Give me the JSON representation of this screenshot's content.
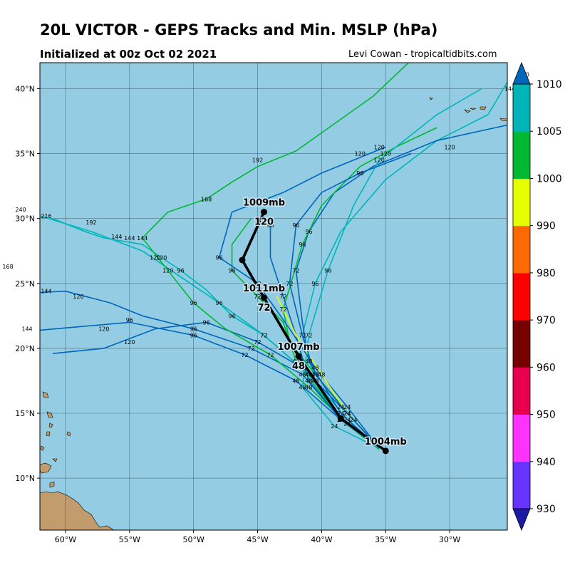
{
  "title": "20L VICTOR - GEPS Tracks and Min. MSLP (hPa)",
  "subtitle": "Initialized at 00z Oct 02 2021",
  "credit": "Levi Cowan - tropicaltidbits.com",
  "colors": {
    "ocean": "#94cde3",
    "land": "#c29c6c",
    "grid": "#000000",
    "mean_track": "#000000"
  },
  "map": {
    "lon_range": [
      -62,
      -25.5
    ],
    "lat_range": [
      6,
      42
    ],
    "lon_ticks": [
      "60°W",
      "55°W",
      "50°W",
      "45°W",
      "40°W",
      "35°W",
      "30°W"
    ],
    "lat_ticks": [
      "10°N",
      "15°N",
      "20°N",
      "25°N",
      "30°N",
      "35°N",
      "40°N"
    ]
  },
  "colorbar": {
    "levels": [
      930,
      940,
      950,
      960,
      970,
      980,
      990,
      1000,
      1005,
      1010
    ],
    "labels": [
      "930",
      "940",
      "950",
      "960",
      "970",
      "980",
      "990",
      "1000",
      "1005",
      "1010"
    ],
    "colors": [
      "#6633ff",
      "#ff33ff",
      "#e8004f",
      "#760000",
      "#ff0000",
      "#ff6a00",
      "#e5ff00",
      "#00b832",
      "#00b5b8"
    ],
    "under_color": "#1a1aa6",
    "over_color": "#0066bb"
  },
  "mean_track": [
    {
      "lon": -35.0,
      "lat": 12.1,
      "hour": "0",
      "label": "1004mb"
    },
    {
      "lon": -38.5,
      "lat": 14.6,
      "hour": "24"
    },
    {
      "lon": -41.8,
      "lat": 19.4,
      "hour": "48",
      "label": "1007mb"
    },
    {
      "lon": -44.5,
      "lat": 23.9,
      "hour": "72",
      "label": "1011mb"
    },
    {
      "lon": -46.2,
      "lat": 26.8,
      "hour": "96"
    },
    {
      "lon": -44.5,
      "lat": 30.5,
      "hour": "120",
      "label": "1009mb"
    }
  ],
  "members": [
    {
      "color": "#00b832",
      "points": [
        [
          -35.5,
          12.2
        ],
        [
          -38.5,
          14.5
        ],
        [
          -42,
          19
        ],
        [
          -43,
          22
        ],
        [
          -45,
          24
        ],
        [
          -47,
          26
        ],
        [
          -47,
          28
        ],
        [
          -45.5,
          30
        ]
      ],
      "labels": [
        [
          -38.5,
          14.5,
          "24"
        ],
        [
          -42,
          19,
          "48"
        ],
        [
          -45,
          24,
          "72"
        ],
        [
          -47,
          26,
          "96"
        ]
      ]
    },
    {
      "color": "#00b5b8",
      "points": [
        [
          -35.5,
          12.3
        ],
        [
          -38,
          14.5
        ],
        [
          -40.5,
          17.5
        ],
        [
          -41.5,
          21
        ],
        [
          -40.5,
          25
        ],
        [
          -38.5,
          29
        ],
        [
          -35,
          33
        ],
        [
          -31,
          36
        ],
        [
          -27,
          38
        ],
        [
          -25.5,
          40.5
        ]
      ],
      "labels": [
        [
          -38,
          14.5,
          "24"
        ],
        [
          -40.5,
          17.5,
          "48"
        ],
        [
          -41.5,
          21,
          "72"
        ],
        [
          -40.5,
          25,
          "96"
        ],
        [
          -35,
          35,
          "120"
        ]
      ]
    },
    {
      "color": "#0066bb",
      "points": [
        [
          -35.5,
          12.3
        ],
        [
          -38.5,
          15
        ],
        [
          -41,
          19
        ],
        [
          -41.5,
          22
        ],
        [
          -42,
          26
        ],
        [
          -41,
          29
        ],
        [
          -39,
          32
        ],
        [
          -36,
          34
        ],
        [
          -31,
          36
        ],
        [
          -25.5,
          37.2
        ]
      ],
      "labels": [
        [
          -38.5,
          15,
          "24"
        ],
        [
          -41,
          19,
          "48"
        ],
        [
          -42,
          26,
          "72"
        ],
        [
          -41,
          29,
          "96"
        ],
        [
          -30,
          35.5,
          "120"
        ]
      ]
    },
    {
      "color": "#00b832",
      "points": [
        [
          -35.5,
          12.3
        ],
        [
          -37.5,
          14.5
        ],
        [
          -40.5,
          18
        ],
        [
          -42.5,
          20.5
        ],
        [
          -43,
          23
        ],
        [
          -41.5,
          28
        ],
        [
          -40,
          31
        ],
        [
          -37,
          34
        ],
        [
          -34,
          35.6
        ],
        [
          -31,
          37
        ]
      ],
      "labels": [
        [
          -37.5,
          14.5,
          "24"
        ],
        [
          -40.5,
          18,
          "48"
        ],
        [
          -43,
          23,
          "72"
        ],
        [
          -41.5,
          28,
          "96"
        ],
        [
          -35.5,
          35.5,
          "120"
        ]
      ]
    },
    {
      "color": "#0066bb",
      "points": [
        [
          -35.5,
          12.3
        ],
        [
          -38,
          15.5
        ],
        [
          -40.5,
          18.5
        ],
        [
          -42.5,
          21.5
        ],
        [
          -45,
          25
        ],
        [
          -48,
          27
        ],
        [
          -47,
          30.5
        ],
        [
          -43,
          32
        ],
        [
          -40,
          33.5
        ],
        [
          -35,
          35.5
        ]
      ],
      "labels": [
        [
          -38,
          15.5,
          "24"
        ],
        [
          -40.5,
          18.5,
          "48"
        ],
        [
          -45,
          25,
          "72"
        ],
        [
          -48,
          27,
          "96"
        ],
        [
          -37,
          35,
          "120"
        ]
      ]
    },
    {
      "color": "#00b5b8",
      "points": [
        [
          -35.5,
          12.3
        ],
        [
          -38.5,
          14.5
        ],
        [
          -41,
          18
        ],
        [
          -44.5,
          21
        ],
        [
          -48,
          23.5
        ],
        [
          -51,
          25.5
        ],
        [
          -54,
          27.5
        ],
        [
          -58,
          29
        ],
        [
          -62,
          30.2
        ]
      ],
      "labels": [
        [
          -38.5,
          14.5,
          "24"
        ],
        [
          -41,
          18,
          "48"
        ],
        [
          -44.5,
          21,
          "72"
        ],
        [
          -48,
          23.5,
          "96"
        ],
        [
          -52.5,
          27,
          "120"
        ],
        [
          -56,
          28.6,
          "144"
        ]
      ]
    },
    {
      "color": "#0066bb",
      "points": [
        [
          -35.5,
          12.4
        ],
        [
          -38.5,
          14.5
        ],
        [
          -42,
          17.5
        ],
        [
          -46,
          19.5
        ],
        [
          -50,
          21
        ],
        [
          -55,
          22
        ],
        [
          -62,
          21.4
        ]
      ],
      "labels": [
        [
          -38.5,
          14.5,
          "24"
        ],
        [
          -42,
          17.5,
          "48"
        ],
        [
          -46,
          19.5,
          "72"
        ],
        [
          -50,
          21,
          "96"
        ],
        [
          -57,
          21.5,
          "120"
        ]
      ]
    },
    {
      "color": "#0066bb",
      "points": [
        [
          -35.5,
          12.3
        ],
        [
          -38.5,
          14.5
        ],
        [
          -41.5,
          18
        ],
        [
          -45.5,
          20
        ],
        [
          -50,
          21.5
        ],
        [
          -54,
          22.5
        ],
        [
          -56.5,
          23.5
        ],
        [
          -60,
          24.4
        ],
        [
          -62,
          24.3
        ]
      ],
      "labels": [
        [
          -38.5,
          14.5,
          "24"
        ],
        [
          -41.5,
          18,
          "48"
        ],
        [
          -45.5,
          20,
          "72"
        ],
        [
          -50,
          21.5,
          "96"
        ],
        [
          -55,
          22.2,
          "96"
        ],
        [
          -59,
          24,
          "120"
        ],
        [
          -61.5,
          24.4,
          "144"
        ]
      ]
    },
    {
      "color": "#0066bb",
      "points": [
        [
          -35.5,
          12.4
        ],
        [
          -38.5,
          15.5
        ],
        [
          -41.5,
          18.5
        ],
        [
          -45,
          20.5
        ],
        [
          -49,
          22
        ],
        [
          -53,
          21.5
        ],
        [
          -57,
          20
        ],
        [
          -61,
          19.6
        ]
      ],
      "labels": [
        [
          -38.5,
          15.5,
          "24"
        ],
        [
          -41.5,
          18.5,
          "48"
        ],
        [
          -45,
          20.5,
          "72"
        ],
        [
          -49,
          22,
          "96"
        ],
        [
          -55,
          20.5,
          "120"
        ]
      ]
    },
    {
      "color": "#00b5b8",
      "points": [
        [
          -35.5,
          12.4
        ],
        [
          -38.5,
          14.5
        ],
        [
          -41,
          18
        ],
        [
          -44.5,
          21
        ],
        [
          -47,
          22.5
        ],
        [
          -49,
          24.5
        ],
        [
          -51,
          26
        ],
        [
          -54,
          28
        ],
        [
          -57,
          28.5
        ],
        [
          -58.5,
          29
        ],
        [
          -61,
          30
        ]
      ],
      "labels": [
        [
          -38.5,
          14.5,
          "24"
        ],
        [
          -41,
          18,
          "48"
        ],
        [
          -44.5,
          21,
          "72"
        ],
        [
          -47,
          22.5,
          "96"
        ],
        [
          -51,
          26,
          "96"
        ],
        [
          -53,
          27,
          "120"
        ],
        [
          -55,
          28.5,
          "144"
        ],
        [
          -58,
          29.7,
          "192"
        ],
        [
          -61.5,
          30.2,
          "216"
        ]
      ]
    },
    {
      "color": "#00b832",
      "points": [
        [
          -35.5,
          12.3
        ],
        [
          -38,
          14.2
        ],
        [
          -41,
          17
        ],
        [
          -44,
          19.5
        ],
        [
          -47.5,
          21.5
        ],
        [
          -50,
          23.5
        ],
        [
          -52,
          26
        ],
        [
          -54,
          28.5
        ],
        [
          -52,
          30.5
        ],
        [
          -49,
          31.5
        ],
        [
          -47,
          32.8
        ],
        [
          -45,
          34
        ],
        [
          -42,
          35.2
        ],
        [
          -36,
          39.4
        ],
        [
          -33,
          42.2
        ]
      ],
      "labels": [
        [
          -38,
          14.2,
          "24"
        ],
        [
          -41,
          17,
          "48"
        ],
        [
          -44,
          19.5,
          "72"
        ],
        [
          -50,
          23.5,
          "96"
        ],
        [
          -52,
          26,
          "120"
        ],
        [
          -54,
          28.5,
          "144"
        ],
        [
          -49,
          31.5,
          "168"
        ],
        [
          -45,
          34.5,
          "192"
        ],
        [
          -34.5,
          42.5,
          "216"
        ]
      ]
    },
    {
      "color": "#0066bb",
      "points": [
        [
          -35.5,
          12.4
        ],
        [
          -38.5,
          14.5
        ],
        [
          -41,
          17.5
        ],
        [
          -42,
          21
        ],
        [
          -43,
          24
        ],
        [
          -44,
          27
        ],
        [
          -44,
          29.5
        ]
      ],
      "labels": [
        [
          -38.5,
          14.5,
          "24"
        ],
        [
          -41,
          17.5,
          "48"
        ],
        [
          -43,
          24,
          "72"
        ],
        [
          -44,
          29.5,
          "96"
        ]
      ]
    },
    {
      "color": "#00b5b8",
      "points": [
        [
          -35.5,
          12.3
        ],
        [
          -39,
          14
        ],
        [
          -41.5,
          17
        ],
        [
          -41,
          21
        ],
        [
          -39.5,
          26
        ],
        [
          -37.5,
          31
        ],
        [
          -35.5,
          34.5
        ],
        [
          -31,
          38
        ],
        [
          -27.5,
          40
        ]
      ],
      "labels": [
        [
          -39,
          14,
          "24"
        ],
        [
          -41.5,
          17,
          "48"
        ],
        [
          -41,
          21,
          "72"
        ],
        [
          -39.5,
          26,
          "96"
        ],
        [
          -35.5,
          34.5,
          "120"
        ]
      ]
    },
    {
      "color": "#e5ff00",
      "points": [
        [
          -35.5,
          12.3
        ],
        [
          -38,
          15
        ],
        [
          -40,
          18
        ],
        [
          -42,
          21
        ],
        [
          -43.5,
          24
        ]
      ],
      "labels": [
        [
          -38,
          15,
          "24"
        ],
        [
          -40,
          18,
          "48"
        ]
      ]
    },
    {
      "color": "#0066bb",
      "points": [
        [
          -35.5,
          12.3
        ],
        [
          -38,
          15
        ],
        [
          -40.5,
          18
        ],
        [
          -41.5,
          21
        ],
        [
          -42.5,
          25
        ],
        [
          -42,
          29.5
        ],
        [
          -40,
          32
        ],
        [
          -37,
          33.5
        ],
        [
          -33,
          35
        ]
      ],
      "labels": [
        [
          -38,
          15,
          "24"
        ],
        [
          -40.5,
          18,
          "48"
        ],
        [
          -42.5,
          25,
          "72"
        ],
        [
          -42,
          29.5,
          "96"
        ],
        [
          -37,
          33.5,
          "96"
        ]
      ]
    }
  ],
  "extra_labels": [
    {
      "lon": -24.2,
      "lat": 41.1,
      "text": "120"
    },
    {
      "lon": -25.3,
      "lat": 40.0,
      "text": "144"
    },
    {
      "lon": -63.5,
      "lat": 30.7,
      "text": "240"
    },
    {
      "lon": -64.5,
      "lat": 26.3,
      "text": "168"
    },
    {
      "lon": -63.0,
      "lat": 21.5,
      "text": "144"
    }
  ]
}
